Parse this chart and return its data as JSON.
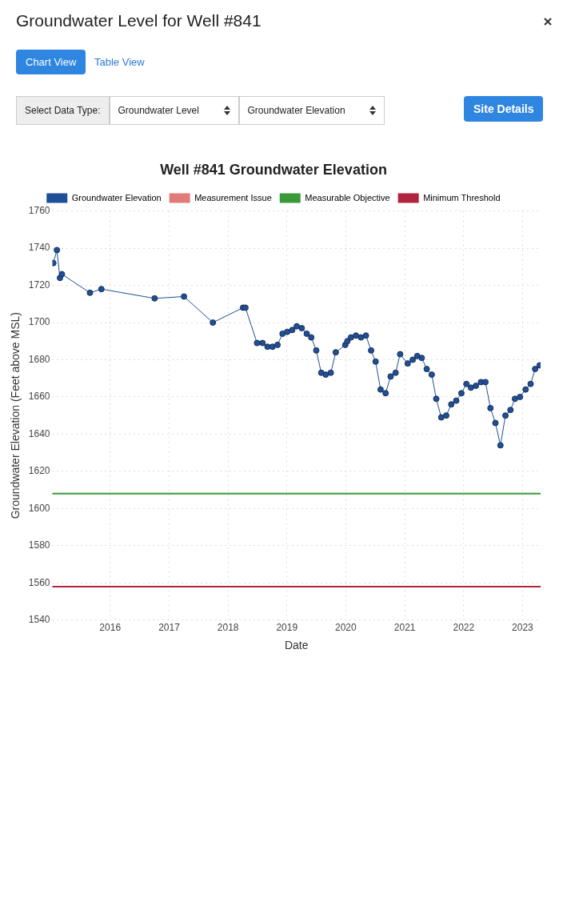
{
  "chart_data": {
    "type": "line",
    "title": "Well #841 Groundwater Elevation",
    "xlabel": "Date",
    "ylabel": "Groundwater Elevation (Feet above MSL)",
    "annotations": [
      "Groundwater Level for Well #841",
      "Chart View",
      "Table View",
      "Select Data Type:",
      "Groundwater Level",
      "Groundwater Elevation",
      "Site Details"
    ],
    "x": [
      "2015-01-14",
      "2015-02-05",
      "2015-02-24",
      "2015-03-08",
      "2015-08-29",
      "2015-11-08",
      "2016-10-03",
      "2017-04-03",
      "2017-09-29",
      "2018-04-04",
      "2018-04-19",
      "2018-06-30",
      "2018-08-03",
      "2018-09-03",
      "2018-10-04",
      "2018-11-04",
      "2018-12-05",
      "2019-01-03",
      "2019-02-03",
      "2019-03-03",
      "2019-04-03",
      "2019-05-04",
      "2019-06-01",
      "2019-07-02",
      "2019-08-02",
      "2019-08-30",
      "2019-09-30",
      "2019-10-31",
      "2019-12-29",
      "2020-01-11",
      "2020-02-02",
      "2020-03-04",
      "2020-04-04",
      "2020-05-05",
      "2020-06-06",
      "2020-07-04",
      "2020-08-04",
      "2020-09-04",
      "2020-10-05",
      "2020-11-05",
      "2020-12-03",
      "2021-01-19",
      "2021-02-19",
      "2021-03-19",
      "2021-04-16",
      "2021-05-17",
      "2021-06-17",
      "2021-07-15",
      "2021-08-15",
      "2021-09-15",
      "2021-10-16",
      "2021-11-16",
      "2021-12-18",
      "2022-01-18",
      "2022-02-15",
      "2022-03-18",
      "2022-04-18",
      "2022-05-16",
      "2022-06-16",
      "2022-07-17",
      "2022-08-17",
      "2022-09-17",
      "2022-10-18",
      "2022-11-15",
      "2022-12-16",
      "2023-01-20",
      "2023-02-20",
      "2023-03-20",
      "2023-04-17"
    ],
    "series": [
      {
        "name": "Groundwater Elevation",
        "color": "#1f4f96",
        "values": [
          1732,
          1739,
          1724,
          1726,
          1716,
          1718,
          1713,
          1714,
          1700,
          1708,
          1708,
          1689,
          1689,
          1687,
          1687,
          1688,
          1694,
          1695,
          1696,
          1698,
          1697,
          1694,
          1692,
          1685,
          1673,
          1672,
          1673,
          1684,
          1688,
          1690,
          1692,
          1693,
          1692,
          1693,
          1685,
          1679,
          1664,
          1662,
          1671,
          1673,
          1683,
          1678,
          1680,
          1682,
          1681,
          1675,
          1672,
          1659,
          1649,
          1650,
          1656,
          1658,
          1662,
          1667,
          1665,
          1666,
          1668,
          1668,
          1654,
          1646,
          1634,
          1650,
          1653,
          1659,
          1660,
          1664,
          1667,
          1675,
          1677
        ]
      },
      {
        "name": "Measurement Issue",
        "color": "#e07b78",
        "values": [
          null,
          null,
          null,
          null,
          null,
          null,
          null,
          null,
          null,
          null,
          null,
          null,
          null,
          null,
          null,
          null,
          null,
          null,
          null,
          null,
          null,
          null,
          null,
          null,
          null,
          null,
          null,
          null,
          null,
          null,
          null,
          null,
          null,
          null,
          null,
          null,
          null,
          null,
          null,
          null,
          null,
          null,
          null,
          null,
          null,
          null,
          null,
          null,
          null,
          null,
          null,
          null,
          null,
          null,
          null,
          null,
          null,
          null,
          null,
          null,
          null,
          null,
          null,
          null,
          null,
          null,
          null,
          null,
          null
        ]
      }
    ],
    "ref_lines": [
      {
        "axis": "y",
        "value": 1608,
        "label": "Measurable Objective",
        "color": "#3a9a3a"
      },
      {
        "axis": "y",
        "value": 1558,
        "label": "Minimum Threshold",
        "color": "#b0243f"
      }
    ],
    "xlim": [
      "2015-01-08",
      "2023-04-23"
    ],
    "xticks": [
      "2016",
      "2017",
      "2018",
      "2019",
      "2020",
      "2021",
      "2022",
      "2023"
    ],
    "ylim": [
      1540,
      1760
    ],
    "yticks": [
      1540,
      1560,
      1580,
      1600,
      1620,
      1640,
      1660,
      1680,
      1700,
      1720,
      1740,
      1760
    ],
    "grid": true,
    "legend": "top",
    "marker": "circle",
    "line_style": "solid"
  }
}
